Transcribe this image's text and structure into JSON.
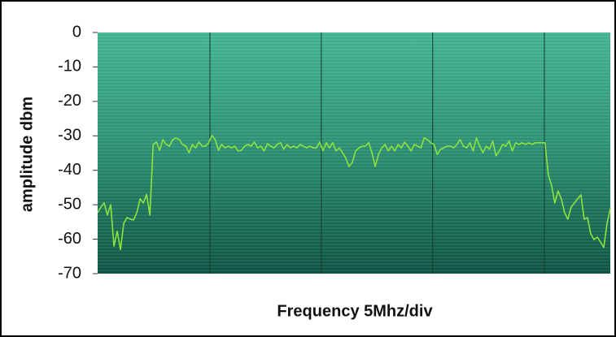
{
  "chart_data": {
    "type": "line",
    "y_label": "amplitude dbm",
    "x_label": "Frequency 5Mhz/div",
    "x": [
      0,
      1,
      2,
      3,
      4,
      5,
      6,
      7,
      8,
      9,
      10,
      11,
      12,
      13,
      14,
      15,
      16,
      17,
      18,
      19,
      20,
      21,
      22,
      23,
      24,
      25,
      26,
      27,
      28,
      29,
      30,
      31,
      32,
      33,
      34,
      35,
      36,
      37,
      38,
      39,
      40,
      41,
      42,
      43,
      44,
      45,
      46,
      47,
      48,
      49,
      50,
      51,
      52,
      53,
      54,
      55,
      56,
      57,
      58,
      59,
      60,
      61,
      62,
      63,
      64,
      65,
      66,
      67,
      68,
      69,
      70,
      71,
      72,
      73,
      74,
      75,
      76,
      77,
      78,
      79,
      80,
      81,
      82,
      83,
      84,
      85,
      86,
      87,
      88,
      89,
      90,
      91,
      92,
      93,
      94,
      95,
      96,
      97,
      98,
      99,
      100,
      101,
      102,
      103,
      104,
      105,
      106,
      107,
      108,
      109,
      110,
      111,
      112,
      113,
      114,
      115,
      116,
      117,
      118,
      119,
      120,
      121,
      122,
      123,
      124,
      125,
      126,
      127,
      128,
      129,
      130,
      131,
      132,
      133,
      134,
      135,
      136,
      137,
      138,
      139,
      140,
      141,
      142,
      143,
      144,
      145,
      146,
      147,
      148,
      149,
      150,
      151,
      152,
      153,
      154,
      155,
      156,
      157
    ],
    "series": [
      {
        "color": "#8ee23c",
        "values": [
          -52.3,
          -50.7,
          -49.5,
          -53,
          -50,
          -62,
          -57.7,
          -63,
          -55.4,
          -53.7,
          -54.2,
          -54.4,
          -52.3,
          -48.3,
          -49.5,
          -47,
          -53,
          -32.5,
          -31.8,
          -34.2,
          -31.1,
          -32.5,
          -33,
          -31.1,
          -30.6,
          -31.1,
          -32.5,
          -33,
          -34.9,
          -32.5,
          -33.5,
          -31.8,
          -33,
          -33,
          -32,
          -29.9,
          -31.1,
          -34.2,
          -32.5,
          -33.5,
          -33,
          -33.5,
          -33,
          -34.4,
          -34.2,
          -33,
          -32.5,
          -33,
          -31.8,
          -33.5,
          -33,
          -34.4,
          -32.3,
          -33,
          -33.5,
          -32.5,
          -32,
          -33.9,
          -32.5,
          -33.5,
          -33,
          -33.5,
          -32.5,
          -33,
          -33.5,
          -33,
          -33.5,
          -33.5,
          -31.8,
          -34.4,
          -32,
          -33.5,
          -32,
          -34.4,
          -33.5,
          -34.9,
          -36.5,
          -38.9,
          -37.7,
          -34.4,
          -33.5,
          -33,
          -33,
          -32,
          -34.9,
          -38.9,
          -35.4,
          -33.5,
          -32.5,
          -34.4,
          -33,
          -34.4,
          -32.5,
          -33.5,
          -31.8,
          -33,
          -34.4,
          -32.5,
          -33,
          -33.5,
          -30.6,
          -31.1,
          -32,
          -32.5,
          -35.4,
          -33.9,
          -33.5,
          -33,
          -33,
          -33.5,
          -32.5,
          -31.1,
          -33,
          -33.5,
          -32,
          -34.4,
          -30.6,
          -33,
          -34.9,
          -33,
          -33.9,
          -31.5,
          -35.8,
          -34.4,
          -32.5,
          -33,
          -31.5,
          -34.4,
          -32,
          -32.5,
          -32,
          -32.5,
          -32,
          -32.5,
          -32,
          -32,
          -32,
          -32,
          -41.2,
          -44.3,
          -49.5,
          -46,
          -48.3,
          -52.3,
          -54.2,
          -50.7,
          -49.5,
          -48.3,
          -47.1,
          -54.2,
          -53.7,
          -58.4,
          -60.1,
          -59.4,
          -60.8,
          -62.4,
          -55.4,
          -51.1
        ]
      }
    ],
    "xlim": [
      0,
      157
    ],
    "xgrid": [
      34.4,
      68.5,
      102.6,
      136.8
    ],
    "ylim": [
      -70,
      0
    ],
    "yticks": [
      0,
      -10,
      -20,
      -30,
      -40,
      -50,
      -60,
      -70
    ]
  }
}
